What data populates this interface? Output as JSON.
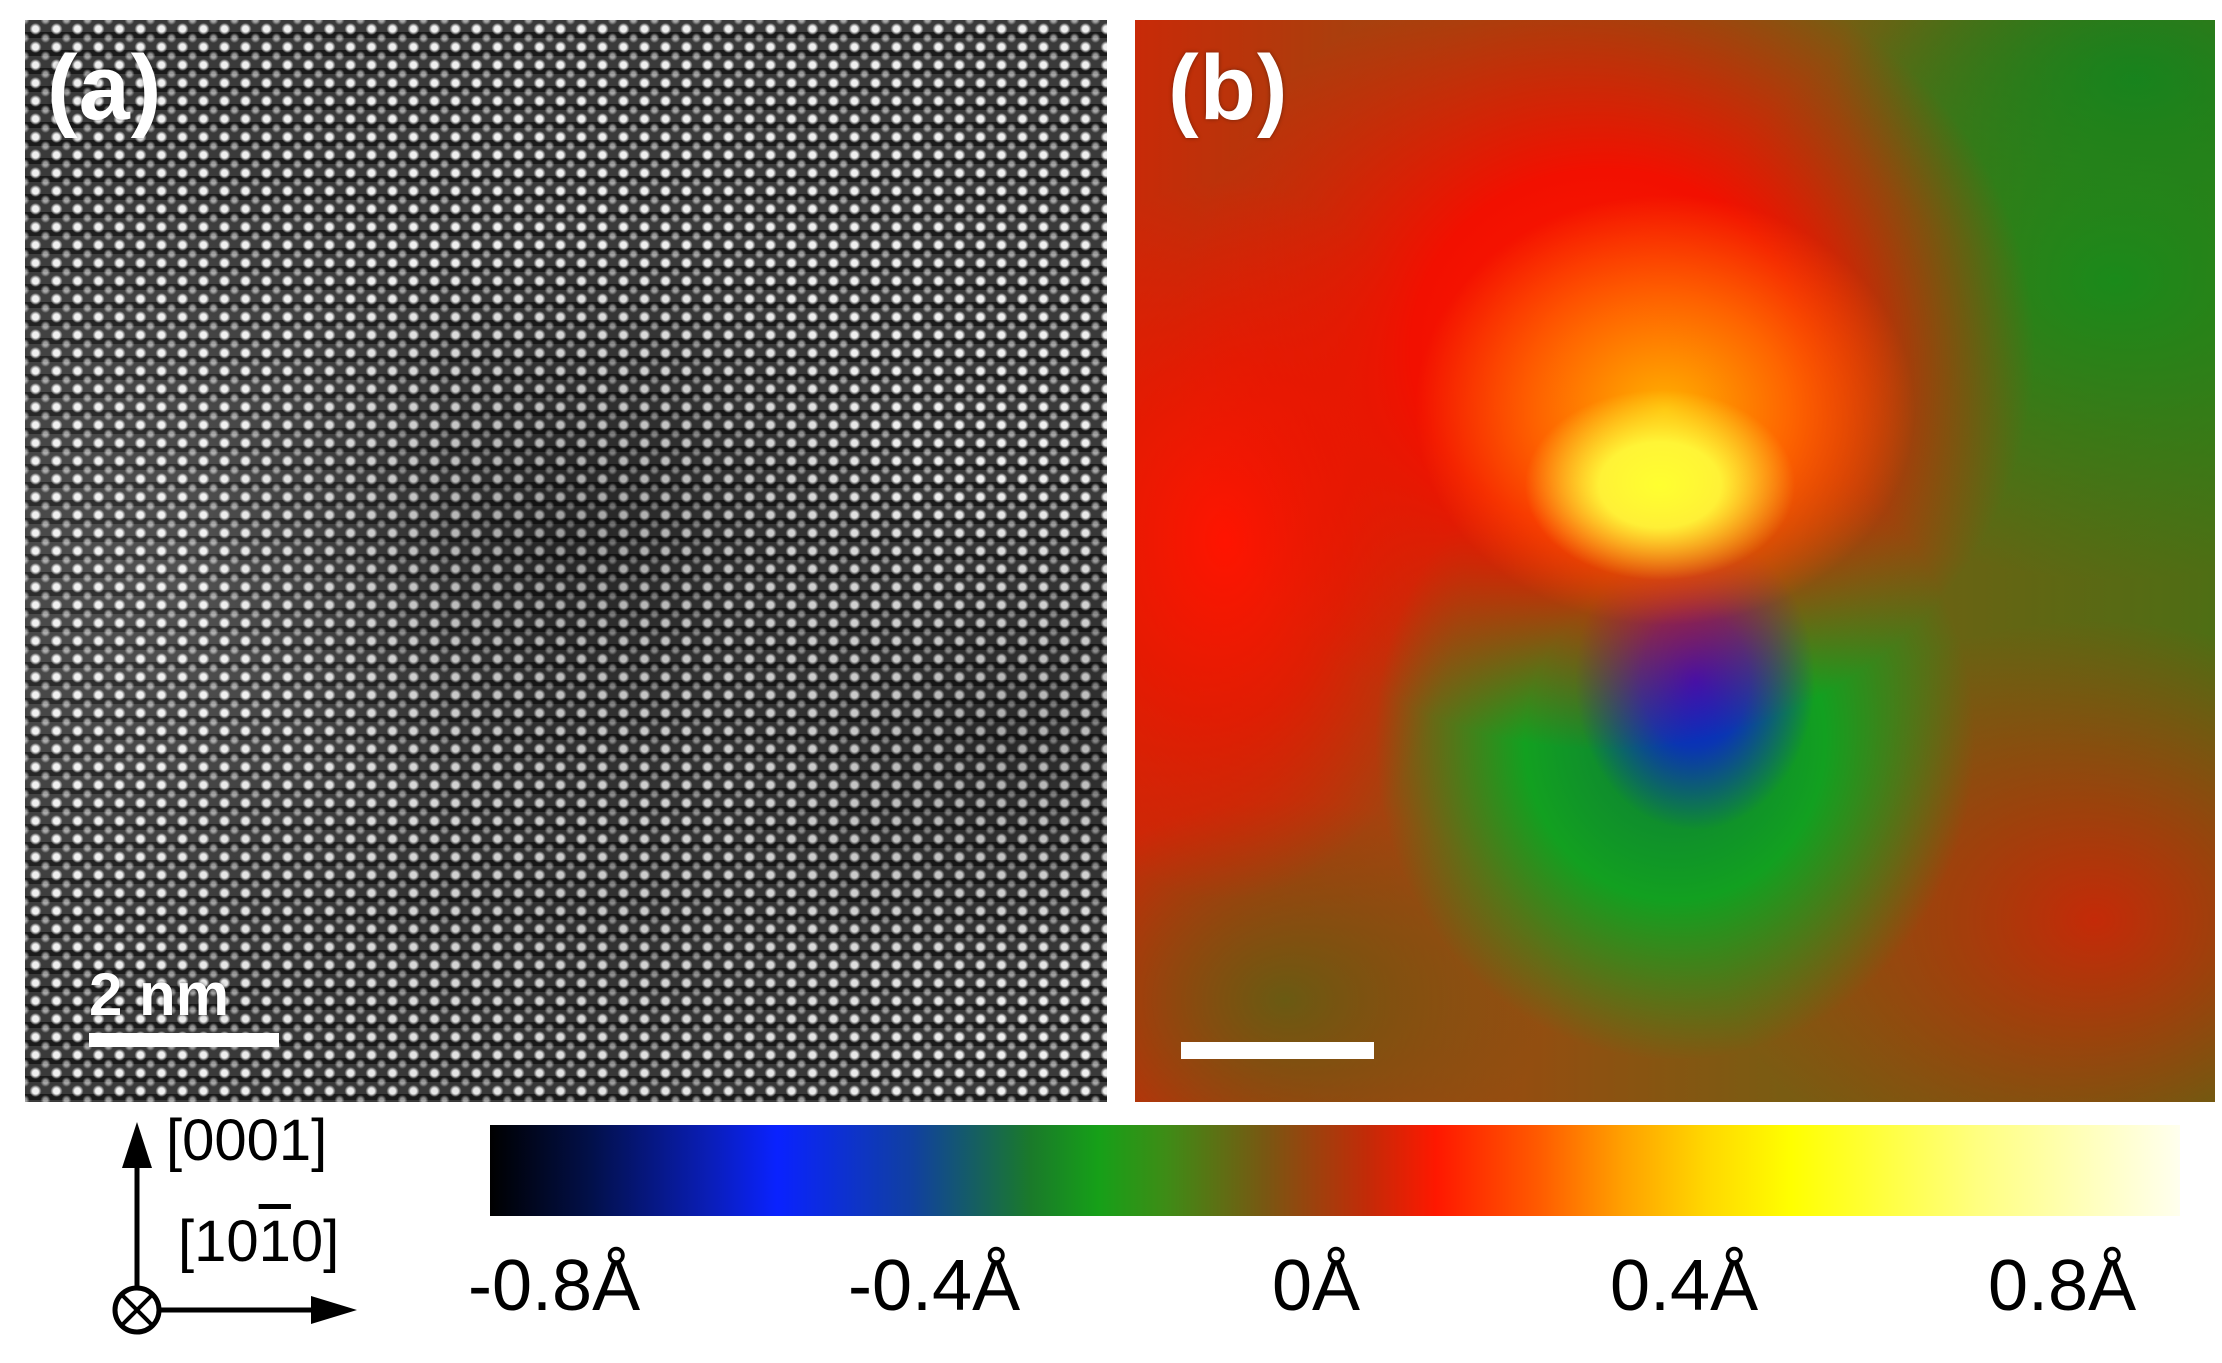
{
  "panel_a": {
    "label": "(a)",
    "scale_bar_label": "2 nm"
  },
  "panel_b": {
    "label": "(b)"
  },
  "orientation": {
    "up_label": "[0001]",
    "right_label_prefix": "[10",
    "right_label_bar": "1",
    "right_label_suffix": "0]"
  },
  "colorbar": {
    "ticks": [
      "-0.8Å",
      "-0.4Å",
      "0Å",
      "0.4Å",
      "0.8Å"
    ],
    "colors": [
      "#000000",
      "#0a22ff",
      "#16a018",
      "#ff1800",
      "#ffff00",
      "#ffffee"
    ]
  },
  "icons": [
    "up-arrow-icon",
    "right-arrow-icon",
    "into-page-circle-icon"
  ]
}
